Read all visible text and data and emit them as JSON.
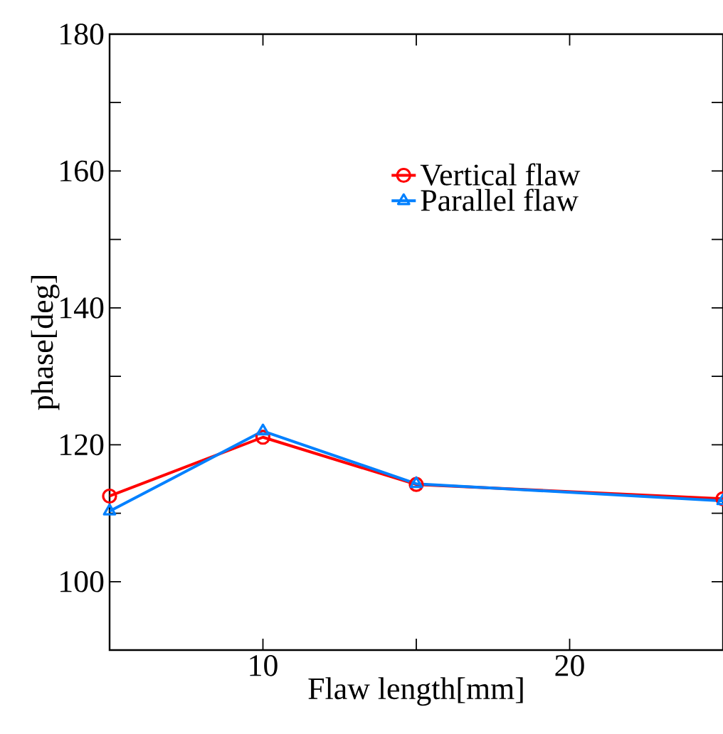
{
  "chart_data": {
    "type": "line",
    "xlabel": "Flaw length[mm]",
    "ylabel": "phase[deg]",
    "xlim": [
      5,
      25
    ],
    "ylim": [
      90,
      180
    ],
    "xticks": [
      10,
      {
        "value": 15,
        "label": null
      },
      20
    ],
    "yticks": [
      {
        "value": 90,
        "label": null
      },
      100,
      {
        "value": 110,
        "label": null
      },
      120,
      {
        "value": 130,
        "label": null
      },
      140,
      {
        "value": 150,
        "label": null
      },
      160,
      {
        "value": 170,
        "label": null
      },
      180
    ],
    "x": [
      5,
      10,
      15,
      25
    ],
    "series": [
      {
        "name": "Vertical flaw",
        "color": "#ff0000",
        "marker": "circle",
        "values": [
          112.5,
          121.1,
          114.2,
          112.1
        ]
      },
      {
        "name": "Parallel flaw",
        "color": "#0080ff",
        "marker": "triangle",
        "values": [
          110.3,
          122.0,
          114.3,
          111.8
        ]
      }
    ],
    "legend": "top right",
    "grid": false,
    "line_style": "solid"
  }
}
